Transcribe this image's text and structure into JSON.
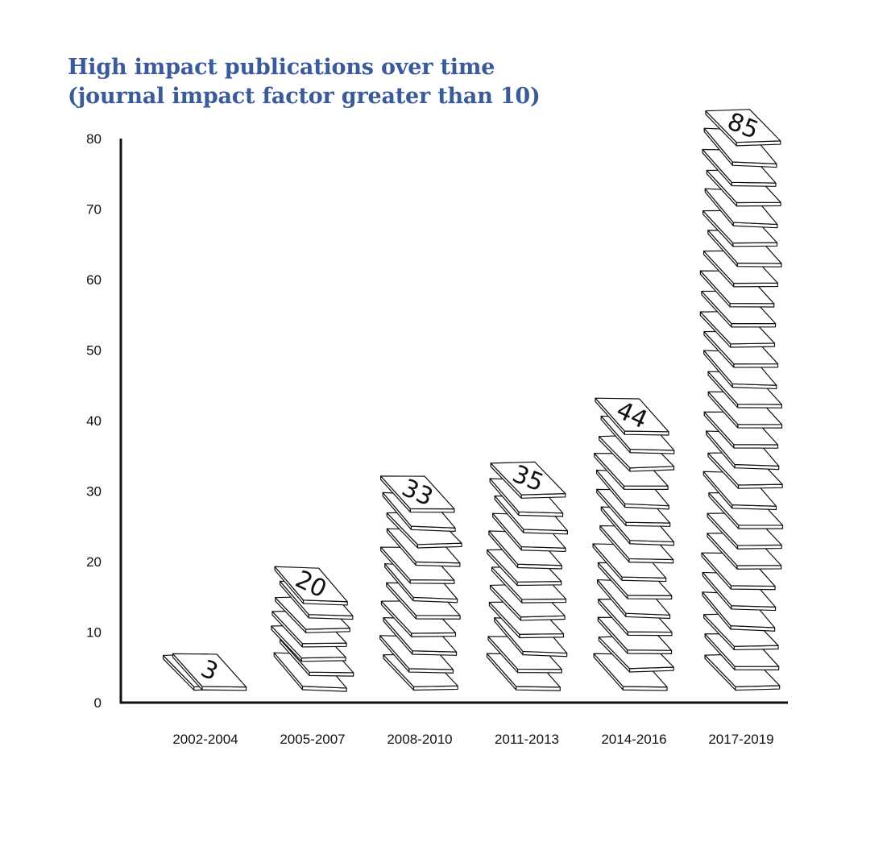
{
  "chart_data": {
    "type": "bar",
    "title": "High impact publications over time\n(journal impact factor greater than 10)",
    "categories": [
      "2002-2004",
      "2005-2007",
      "2008-2010",
      "2011-2013",
      "2014-2016",
      "2017-2019"
    ],
    "values": [
      3,
      20,
      33,
      35,
      44,
      85
    ],
    "data_labels": [
      "3",
      "20",
      "33",
      "35",
      "44",
      "85"
    ],
    "ylim": [
      0,
      80
    ],
    "yticks": [
      0,
      10,
      20,
      30,
      40,
      50,
      60,
      70,
      80
    ],
    "ytick_labels": [
      "0",
      "10",
      "20",
      "30",
      "40",
      "50",
      "60",
      "70",
      "80"
    ],
    "grid": false,
    "legend": "none",
    "style": "stacks of papers",
    "colors": {
      "title": "#3b5a9a",
      "ink": "#111111"
    }
  }
}
